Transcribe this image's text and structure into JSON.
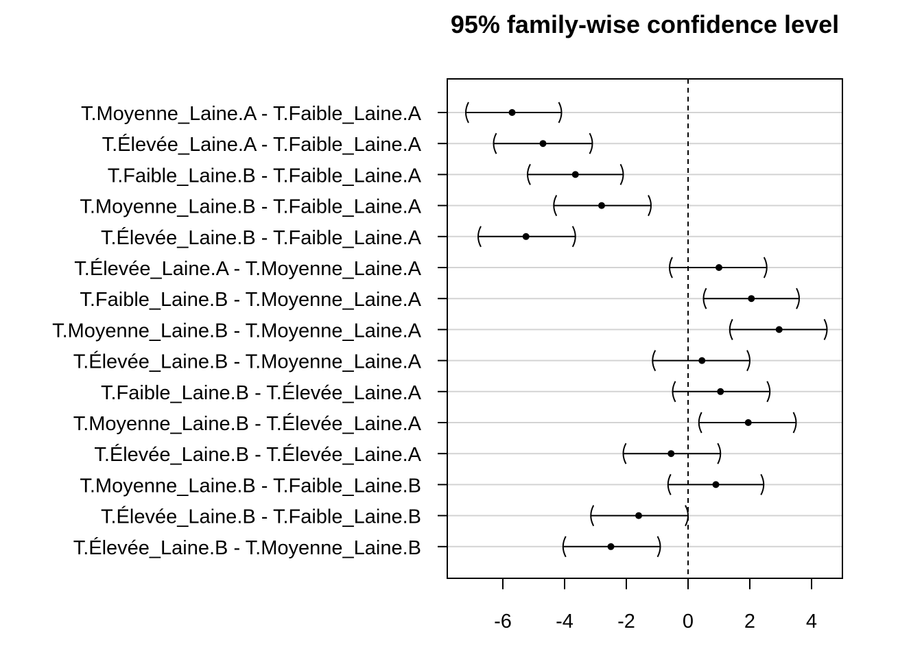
{
  "chart_data": {
    "type": "interval",
    "title": "95% family-wise confidence level",
    "xlabel": "",
    "ylabel": "",
    "xlim": [
      -7.8,
      5.0
    ],
    "x_ticks": [
      "-6",
      "-4",
      "-2",
      "0",
      "2",
      "4"
    ],
    "reference_line": 0,
    "grid": "horizontal",
    "intervals": [
      {
        "label": "T.Moyenne_Laine.A - T.Faible_Laine.A",
        "lwr": -7.2,
        "estimate": -5.7,
        "upr": -4.1
      },
      {
        "label": "T.Élevée_Laine.A - T.Faible_Laine.A",
        "lwr": -6.3,
        "estimate": -4.7,
        "upr": -3.1
      },
      {
        "label": "T.Faible_Laine.B - T.Faible_Laine.A",
        "lwr": -5.2,
        "estimate": -3.65,
        "upr": -2.1
      },
      {
        "label": "T.Moyenne_Laine.B - T.Faible_Laine.A",
        "lwr": -4.35,
        "estimate": -2.8,
        "upr": -1.2
      },
      {
        "label": "T.Élevée_Laine.B - T.Faible_Laine.A",
        "lwr": -6.8,
        "estimate": -5.25,
        "upr": -3.65
      },
      {
        "label": "T.Élevée_Laine.A - T.Moyenne_Laine.A",
        "lwr": -0.6,
        "estimate": 1.0,
        "upr": 2.55
      },
      {
        "label": "T.Faible_Laine.B - T.Moyenne_Laine.A",
        "lwr": 0.5,
        "estimate": 2.05,
        "upr": 3.6
      },
      {
        "label": "T.Moyenne_Laine.B - T.Moyenne_Laine.A",
        "lwr": 1.35,
        "estimate": 2.95,
        "upr": 4.5
      },
      {
        "label": "T.Élevée_Laine.B - T.Moyenne_Laine.A",
        "lwr": -1.15,
        "estimate": 0.45,
        "upr": 2.0
      },
      {
        "label": "T.Faible_Laine.B - T.Élevée_Laine.A",
        "lwr": -0.5,
        "estimate": 1.05,
        "upr": 2.65
      },
      {
        "label": "T.Moyenne_Laine.B - T.Élevée_Laine.A",
        "lwr": 0.35,
        "estimate": 1.95,
        "upr": 3.5
      },
      {
        "label": "T.Élevée_Laine.B - T.Élevée_Laine.A",
        "lwr": -2.1,
        "estimate": -0.55,
        "upr": 1.05
      },
      {
        "label": "T.Moyenne_Laine.B - T.Faible_Laine.B",
        "lwr": -0.65,
        "estimate": 0.9,
        "upr": 2.45
      },
      {
        "label": "T.Élevée_Laine.B - T.Faible_Laine.B",
        "lwr": -3.15,
        "estimate": -1.6,
        "upr": 0.0
      },
      {
        "label": "T.Élevée_Laine.B - T.Moyenne_Laine.B",
        "lwr": -4.05,
        "estimate": -2.5,
        "upr": -0.9
      }
    ]
  }
}
